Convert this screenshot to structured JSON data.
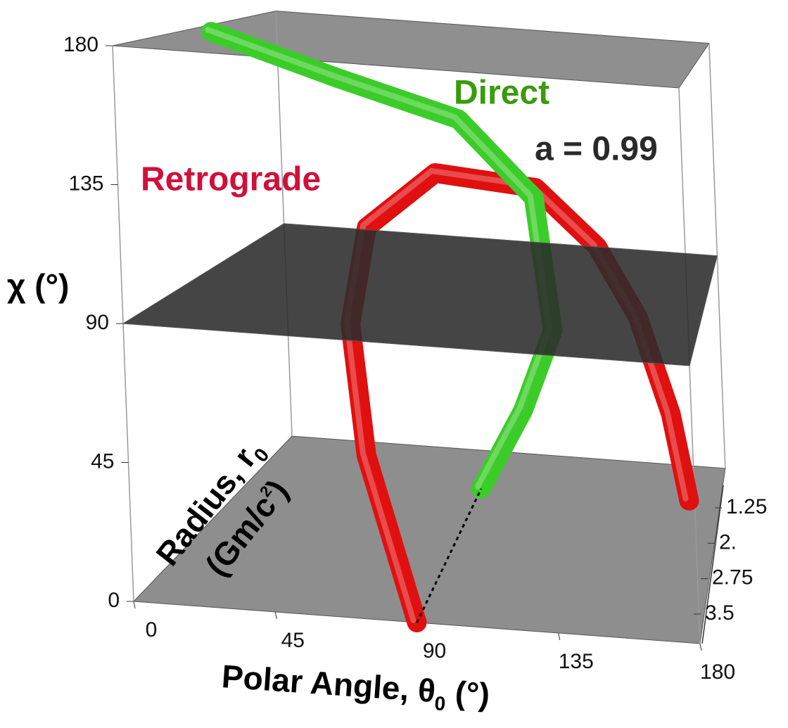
{
  "chart_data": {
    "type": "tube3d",
    "x_label": [
      "Polar Angle, θ",
      "0",
      " (°)"
    ],
    "y_label": "χ (°)",
    "z_label": [
      [
        "Radius, r",
        "0"
      ],
      [
        "(Gm/c",
        "2",
        ")"
      ]
    ],
    "annotations": [
      {
        "text": "Direct",
        "color": "#3a9c0c"
      },
      {
        "text": "a = 0.99",
        "color": "#2a2a2a"
      },
      {
        "text": "Retrograde",
        "color": "#d0103a"
      }
    ],
    "xlim": [
      0,
      180
    ],
    "xticks": [
      0,
      45,
      90,
      135,
      180
    ],
    "ylim": [
      0,
      180
    ],
    "yticks": [
      0,
      45,
      90,
      135,
      180
    ],
    "zlim": [
      1.25,
      3.5
    ],
    "zticks": [
      1.25,
      {
        "value": 2,
        "label": "2."
      },
      2.75,
      3.5
    ],
    "planes": [
      {
        "value": 0,
        "color": "#7a7a7a",
        "opacity": 0.85
      },
      {
        "value": 180,
        "color": "#6a6a6a",
        "opacity": 0.75
      },
      {
        "value": 90,
        "color": "#2b2b2b",
        "opacity": 0.88
      }
    ],
    "series": [
      {
        "name": "Retrograde",
        "color": "#e01010",
        "x": [
          90,
          72,
          65,
          70,
          92,
          125,
          145,
          158,
          168,
          173
        ],
        "z": [
          3.5,
          3.25,
          3.05,
          2.95,
          2.825,
          2.71,
          2.65,
          2.6,
          2.55,
          2.5
        ],
        "y": [
          0,
          48,
          88,
          120,
          139,
          135,
          115,
          90,
          55,
          23
        ]
      },
      {
        "name": "Direct",
        "color": "#3ccc2a",
        "x": [
          2,
          43,
          93,
          123,
          130,
          120,
          106
        ],
        "z": [
          2.22,
          2.0,
          2.3,
          2.6,
          2.8,
          2.9,
          3.0
        ],
        "y": [
          178,
          162,
          153,
          130,
          86.5,
          60,
          34
        ]
      }
    ]
  }
}
